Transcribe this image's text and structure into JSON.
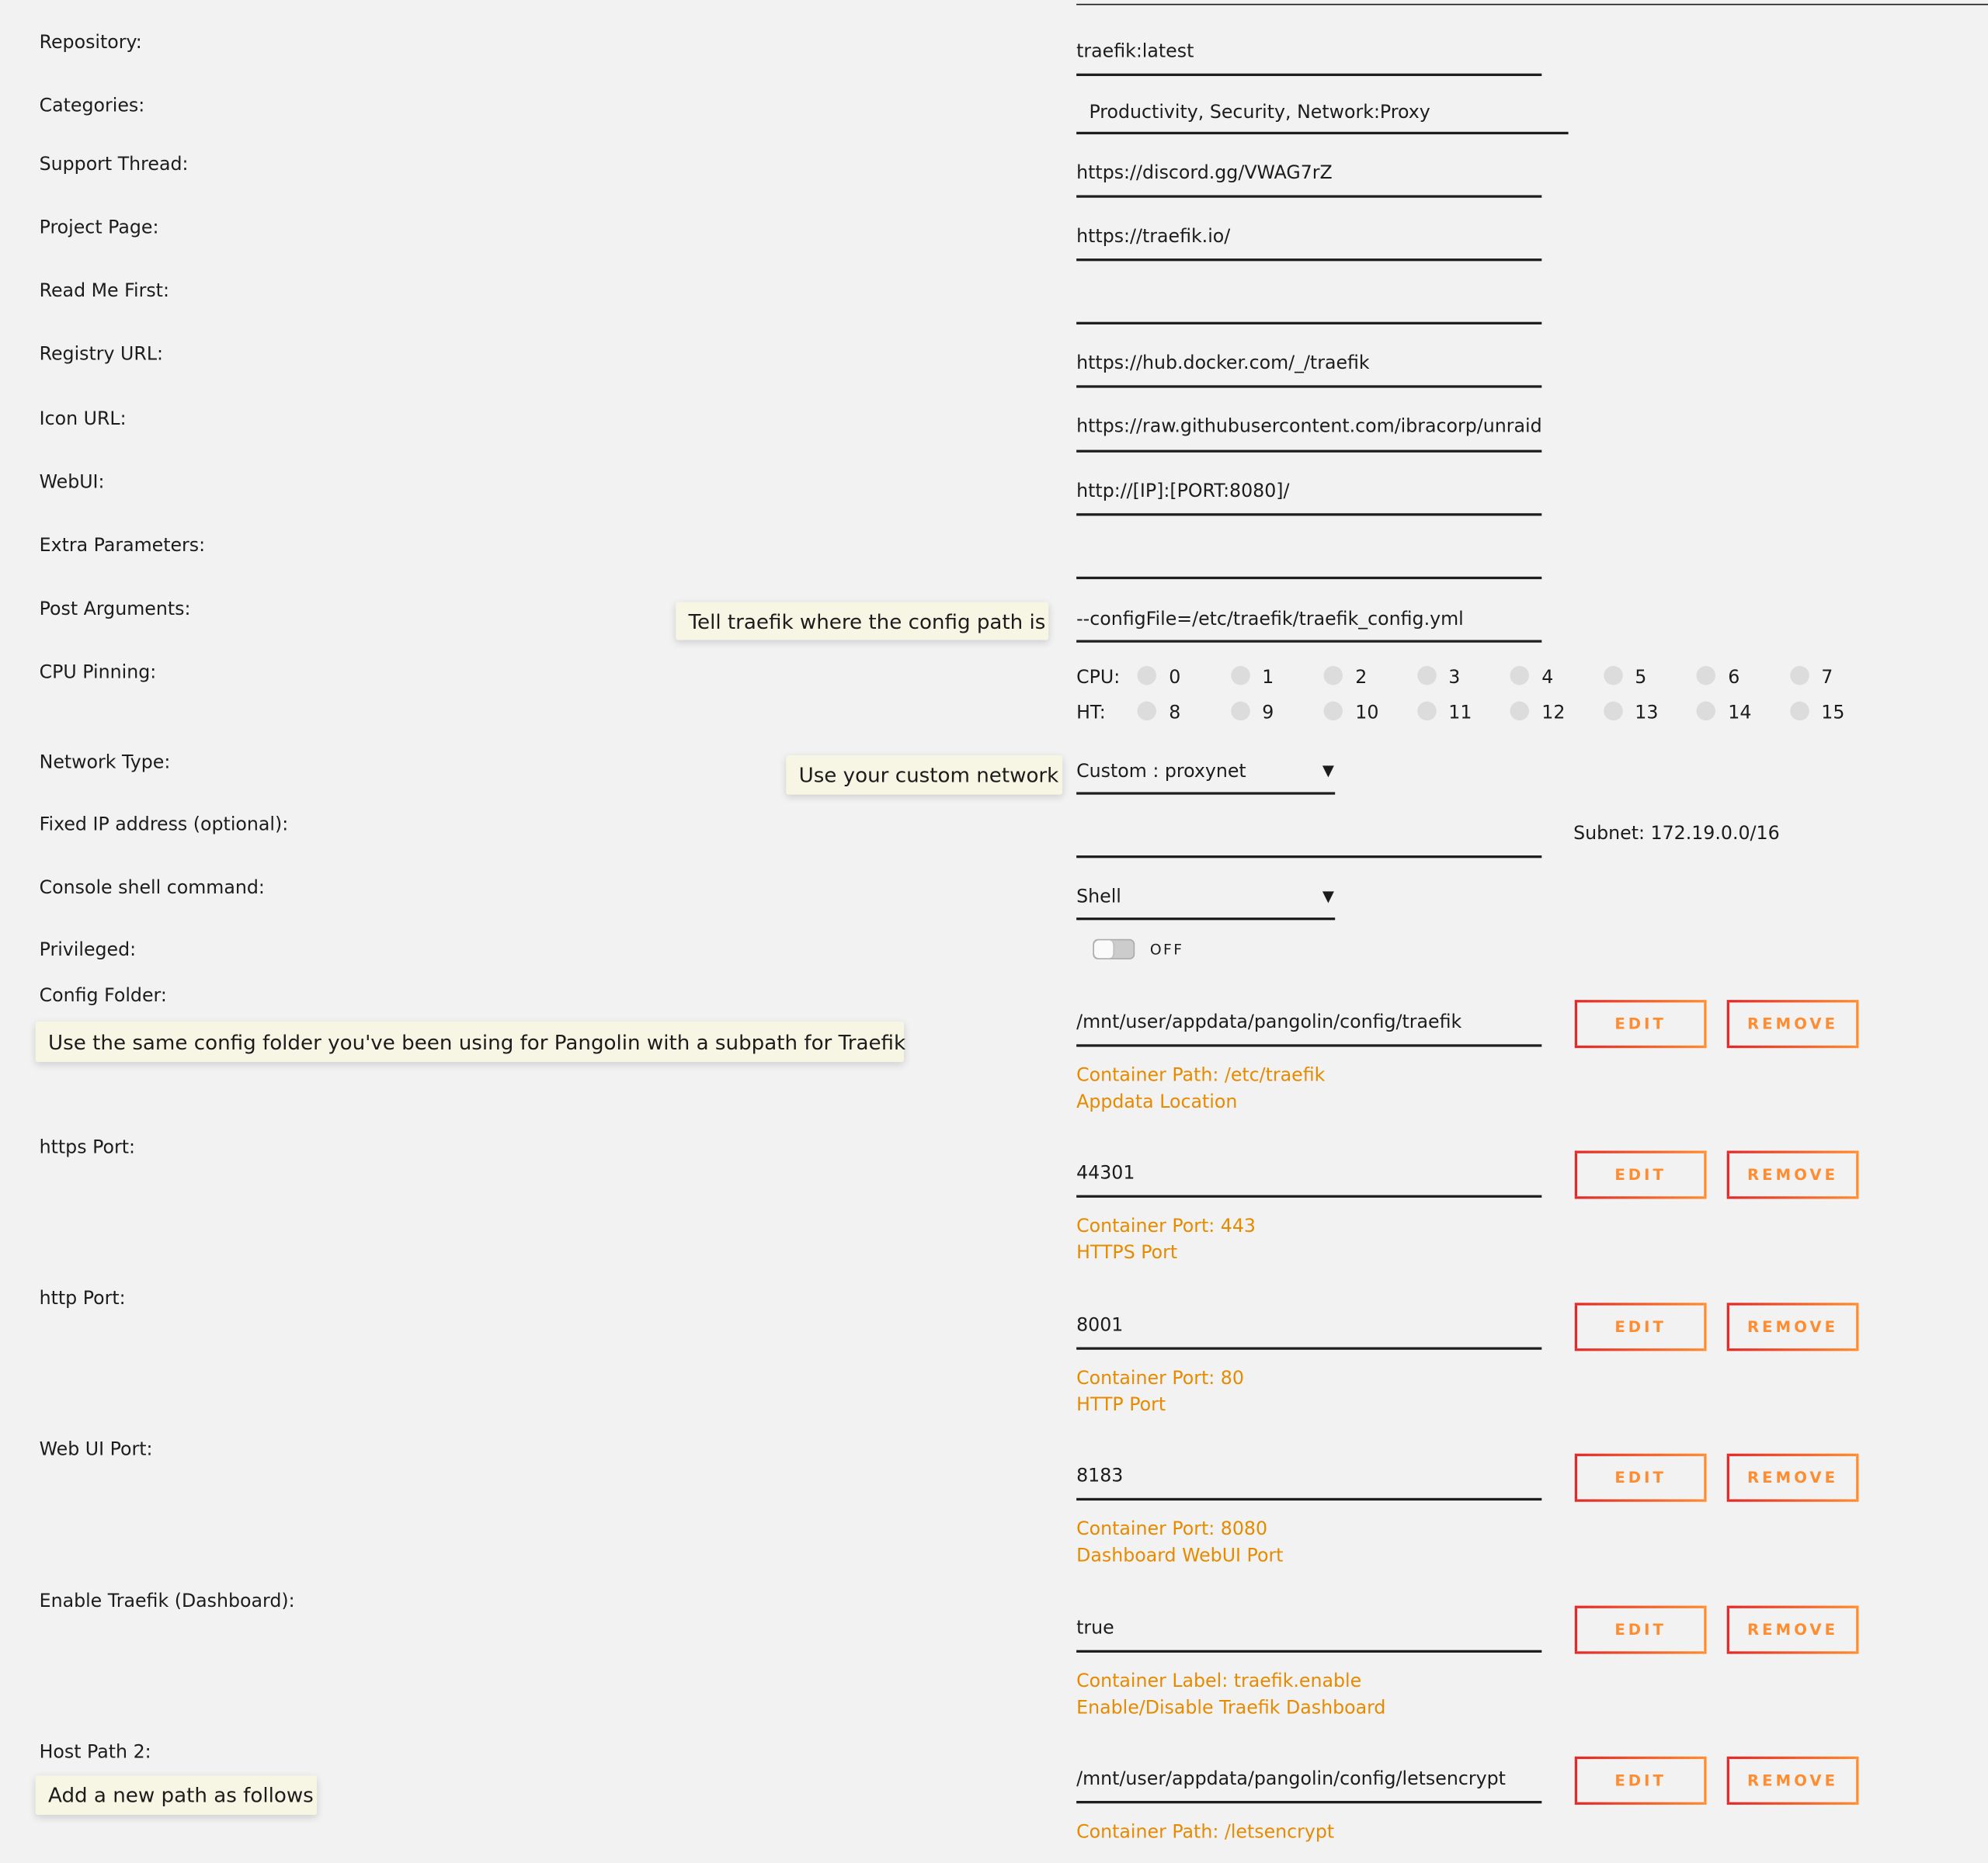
{
  "fields": [
    {
      "label": "Repository:",
      "value": "traefik:latest"
    },
    {
      "label": "Categories:",
      "value": "Productivity, Security, Network:Proxy"
    },
    {
      "label": "Support Thread:",
      "value": "https://discord.gg/VWAG7rZ"
    },
    {
      "label": "Project Page:",
      "value": "https://traefik.io/"
    },
    {
      "label": "Read Me First:",
      "value": ""
    },
    {
      "label": "Registry URL:",
      "value": "https://hub.docker.com/_/traefik"
    },
    {
      "label": "Icon URL:",
      "value": "https://raw.githubusercontent.com/ibracorp/unraid"
    },
    {
      "label": "WebUI:",
      "value": "http://[IP]:[PORT:8080]/"
    },
    {
      "label": "Extra Parameters:",
      "value": ""
    },
    {
      "label": "Post Arguments:",
      "value": "--configFile=/etc/traefik/traefik_config.yml"
    }
  ],
  "cpu_pinning": {
    "label": "CPU Pinning:",
    "cpu_label": "CPU:",
    "ht_label": "HT:",
    "cpu_cores": [
      "0",
      "1",
      "2",
      "3",
      "4",
      "5",
      "6",
      "7"
    ],
    "ht_cores": [
      "8",
      "9",
      "10",
      "11",
      "12",
      "13",
      "14",
      "15"
    ]
  },
  "network": {
    "label": "Network Type:",
    "value": "Custom : proxynet"
  },
  "fixed_ip": {
    "label": "Fixed IP address (optional):",
    "value": "",
    "subnet": "Subnet: 172.19.0.0/16"
  },
  "console": {
    "label": "Console shell command:",
    "value": "Shell"
  },
  "privileged": {
    "label": "Privileged:",
    "state": "OFF",
    "enabled": false
  },
  "configs": [
    {
      "label": "Config Folder:",
      "value": "/mnt/user/appdata/pangolin/config/traefik",
      "desc1": "Container Path: /etc/traefik",
      "desc2": "Appdata Location"
    },
    {
      "label": "https Port:",
      "value": "44301",
      "desc1": "Container Port: 443",
      "desc2": "HTTPS Port"
    },
    {
      "label": "http Port:",
      "value": "8001",
      "desc1": "Container Port: 80",
      "desc2": "HTTP Port"
    },
    {
      "label": "Web UI Port:",
      "value": "8183",
      "desc1": "Container Port: 8080",
      "desc2": "Dashboard WebUI Port"
    },
    {
      "label": "Enable Traefik (Dashboard):",
      "value": "true",
      "desc1": "Container Label: traefik.enable",
      "desc2": "Enable/Disable Traefik Dashboard"
    },
    {
      "label": "Host Path 2:",
      "value": "/mnt/user/appdata/pangolin/config/letsencrypt",
      "desc1": "Container Path: /letsencrypt",
      "desc2": ""
    }
  ],
  "buttons": {
    "edit": "EDIT",
    "remove": "REMOVE"
  },
  "tooltips": {
    "post_args": "Tell traefik where the config path is",
    "network": "Use your custom network",
    "config_folder": "Use the same config folder you've been using for Pangolin with a subpath for Traefik",
    "host_path": "Add a new path as follows"
  },
  "colors": {
    "accent": "#e68a00",
    "button_gradient_start": "#e22828",
    "button_gradient_end": "#ff8c2f",
    "tooltip_bg": "#f7f5e4"
  }
}
